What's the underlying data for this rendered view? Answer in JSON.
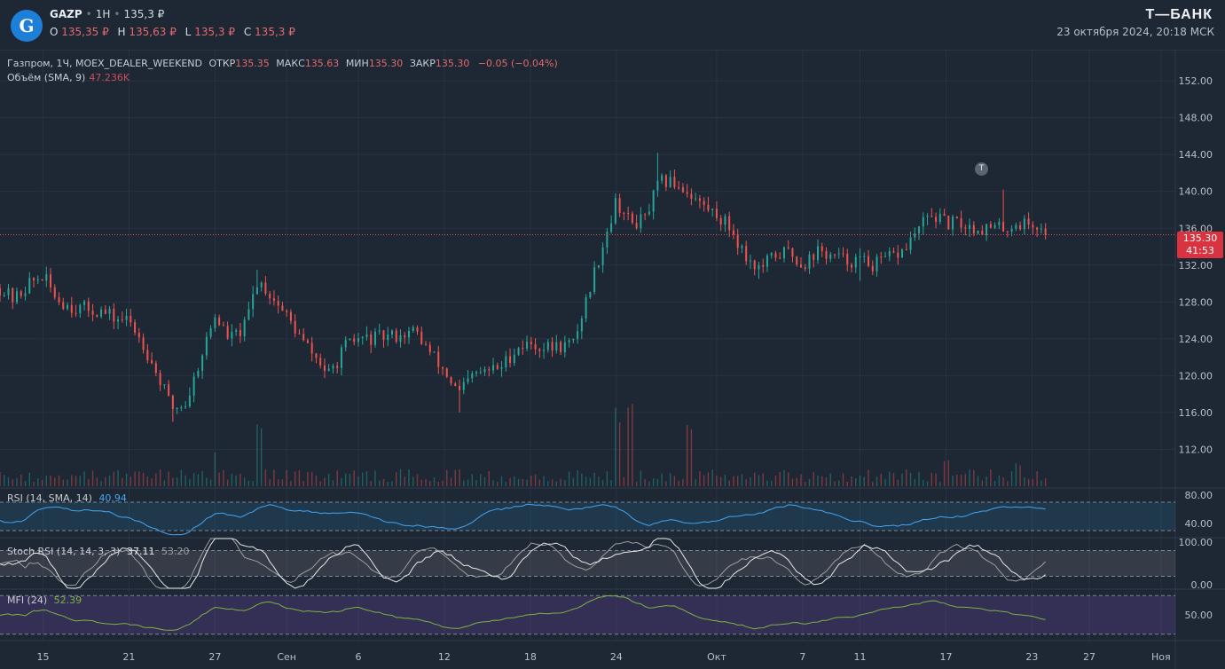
{
  "header": {
    "ticker": "GAZP",
    "timeframe": "1H",
    "last_price": "135,3 ₽",
    "ohlc": [
      {
        "label": "O",
        "value": "135,35 ₽"
      },
      {
        "label": "H",
        "value": "135,63 ₽"
      },
      {
        "label": "L",
        "value": "135,3 ₽"
      },
      {
        "label": "C",
        "value": "135,3 ₽"
      }
    ],
    "brand": "Т—БАНК",
    "datetime": "23 октября 2024, 20:18 МСК",
    "logo_glyph": "G",
    "logo_icon": "gazprom-logo-icon",
    "logo_color": "#1d7fd8"
  },
  "legend": {
    "title": "Газпром, 1Ч, MOEX_DEALER_WEEKEND",
    "open_label": "ОТКР",
    "open_value": "135.35",
    "high_label": "МАКС",
    "high_value": "135.63",
    "low_label": "МИН",
    "low_value": "135.30",
    "close_label": "ЗАКР",
    "close_value": "135.30",
    "change": "−0.05 (−0.04%)",
    "volume_label": "Объём (SMA, 9)",
    "volume_value": "47.236K"
  },
  "price_tag": {
    "price": "135.30",
    "countdown": "41:53"
  },
  "marker": {
    "glyph": "T",
    "icon": "event-marker-icon"
  },
  "colors": {
    "up": "#26a69a",
    "down": "#ef5350",
    "background": "#1e2734",
    "rsi": "#42a5f5",
    "stoch_k": "#e8e8e8",
    "stoch_d": "#9e9e9e",
    "mfi": "#7cb342",
    "last_price_line": "#e84855"
  },
  "chart_data": [
    {
      "type": "candlestick",
      "title": "Газпром, 1Ч, MOEX_DEALER_WEEKEND",
      "ylim": [
        108,
        155
      ],
      "y_ticks": [
        "152.00",
        "148.00",
        "144.00",
        "140.00",
        "136.00",
        "132.00",
        "128.00",
        "124.00",
        "120.00",
        "116.00",
        "112.00"
      ],
      "x_tick_labels": [
        "15",
        "21",
        "27",
        "Сен",
        "6",
        "12",
        "18",
        "24",
        "Окт",
        "7",
        "11",
        "17",
        "23",
        "27",
        "Ноя"
      ],
      "x_tick_dates": [
        "2024-08-15",
        "2024-08-21",
        "2024-08-27",
        "2024-09-01",
        "2024-09-06",
        "2024-09-12",
        "2024-09-18",
        "2024-09-24",
        "2024-10-01",
        "2024-10-07",
        "2024-10-11",
        "2024-10-17",
        "2024-10-23",
        "2024-10-27",
        "2024-11-01"
      ],
      "close_path": {
        "dates": [
          "2024-08-12",
          "2024-08-13",
          "2024-08-14",
          "2024-08-15",
          "2024-08-16",
          "2024-08-17",
          "2024-08-19",
          "2024-08-20",
          "2024-08-21",
          "2024-08-22",
          "2024-08-23",
          "2024-08-24",
          "2024-08-25",
          "2024-08-26",
          "2024-08-27",
          "2024-08-28",
          "2024-08-29",
          "2024-08-30",
          "2024-09-01",
          "2024-09-02",
          "2024-09-03",
          "2024-09-04",
          "2024-09-05",
          "2024-09-06",
          "2024-09-07",
          "2024-09-09",
          "2024-09-10",
          "2024-09-11",
          "2024-09-12",
          "2024-09-13",
          "2024-09-14",
          "2024-09-16",
          "2024-09-17",
          "2024-09-18",
          "2024-09-19",
          "2024-09-20",
          "2024-09-21",
          "2024-09-23",
          "2024-09-24",
          "2024-09-25",
          "2024-09-26",
          "2024-09-27",
          "2024-09-28",
          "2024-09-29",
          "2024-09-30",
          "2024-10-01",
          "2024-10-02",
          "2024-10-03",
          "2024-10-04",
          "2024-10-05",
          "2024-10-06",
          "2024-10-07",
          "2024-10-08",
          "2024-10-09",
          "2024-10-10",
          "2024-10-11",
          "2024-10-12",
          "2024-10-14",
          "2024-10-15",
          "2024-10-16",
          "2024-10-17",
          "2024-10-18",
          "2024-10-19",
          "2024-10-20",
          "2024-10-21",
          "2024-10-22",
          "2024-10-23",
          "2024-10-24"
        ],
        "values": [
          129.5,
          128.2,
          130.0,
          130.8,
          128.3,
          127.5,
          127.0,
          126.2,
          126.0,
          123.5,
          120.0,
          116.5,
          117.0,
          122.0,
          126.5,
          124.0,
          125.0,
          130.5,
          126.5,
          124.0,
          122.0,
          120.0,
          123.0,
          124.0,
          124.0,
          124.5,
          124.8,
          122.5,
          120.5,
          118.0,
          120.0,
          121.0,
          123.0,
          123.5,
          123.0,
          123.2,
          123.5,
          134.0,
          139.0,
          136.5,
          137.0,
          141.0,
          141.0,
          140.0,
          138.5,
          137.5,
          136.0,
          133.0,
          131.5,
          133.0,
          133.5,
          132.0,
          133.5,
          133.0,
          132.5,
          132.5,
          132.0,
          133.5,
          135.8,
          137.5,
          136.5,
          136.5,
          136.0,
          136.0,
          136.0,
          136.5,
          136.5,
          135.3
        ]
      },
      "highlights": [
        {
          "date": "2024-08-24",
          "low": 115.0
        },
        {
          "date": "2024-08-30",
          "high": 131.5
        },
        {
          "date": "2024-09-13",
          "low": 116.0
        },
        {
          "date": "2024-09-27",
          "high": 144.2
        },
        {
          "date": "2024-10-04",
          "low": 130.5
        },
        {
          "date": "2024-10-11",
          "low": 130.3
        },
        {
          "date": "2024-10-21",
          "high": 140.2
        }
      ],
      "last_price": 135.3
    },
    {
      "type": "bar",
      "title": "Объём (SMA, 9)",
      "last_value": "47.236K",
      "spikes": [
        {
          "date": "2024-08-27",
          "relative": 0.4
        },
        {
          "date": "2024-08-30",
          "relative": 0.65
        },
        {
          "date": "2024-09-24",
          "relative": 0.85
        },
        {
          "date": "2024-09-25",
          "relative": 1.0
        },
        {
          "date": "2024-09-29",
          "relative": 0.75
        },
        {
          "date": "2024-10-17",
          "relative": 0.28
        },
        {
          "date": "2024-10-22",
          "relative": 0.25
        }
      ]
    },
    {
      "type": "line",
      "title": "RSI (14, SMA, 14)",
      "value": "40.94",
      "y_ticks": [
        "80.00",
        "40.00"
      ],
      "bands": [
        70,
        30
      ],
      "ylim": [
        20,
        90
      ]
    },
    {
      "type": "line",
      "title": "Stoch RSI (14, 14, 3, 3)",
      "k_value": "37.11",
      "d_value": "53.20",
      "y_ticks": [
        "100.00",
        "0.00"
      ],
      "bands": [
        80,
        20
      ],
      "ylim": [
        -10,
        110
      ]
    },
    {
      "type": "line",
      "title": "MFI (24)",
      "value": "52.39",
      "y_ticks": [
        "50.00"
      ],
      "bands": [
        80,
        20
      ],
      "ylim": [
        10,
        90
      ]
    }
  ]
}
